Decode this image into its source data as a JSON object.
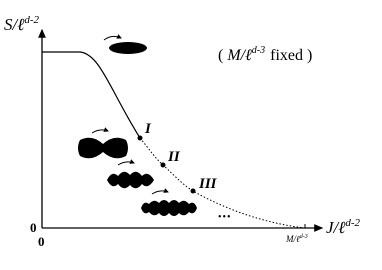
{
  "axes": {
    "y_label": {
      "text": "S/ℓ",
      "sup": "d-2"
    },
    "x_label": {
      "text": "J/ℓ",
      "sup": "d-2"
    },
    "y_origin": "0",
    "x_origin": "0",
    "x_end": {
      "text": "M/ℓ",
      "sup": "d-3"
    }
  },
  "annotation": {
    "open": "(",
    "text": "M/ℓ",
    "sup": "d-3",
    "after": "fixed )"
  },
  "points": [
    "I",
    "II",
    "III"
  ],
  "ellipsis": "•••"
}
